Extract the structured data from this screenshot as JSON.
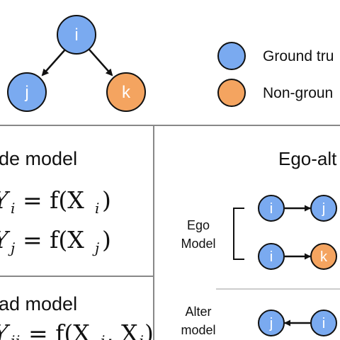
{
  "colors": {
    "ground_truth": "#7aaaf0",
    "non_ground_truth": "#f4a460",
    "stroke": "#111111",
    "divider": "#bbbbbb"
  },
  "top_graph": {
    "node_top": "i",
    "node_left": "j",
    "node_right": "k"
  },
  "legend": {
    "ground_truth_label": "Ground tru",
    "non_ground_truth_label": "Non-groun"
  },
  "left_panel": {
    "node_model_title": "de model",
    "eq1_lhs": "Y",
    "eq1_lhs_sub": "i",
    "eq1_rhs": "= f(X",
    "eq1_rhs_sub": "i",
    "eq1_close": ")",
    "eq2_lhs": "Y",
    "eq2_lhs_sub": "j",
    "eq2_rhs": "= f(X",
    "eq2_rhs_sub": "j",
    "eq2_close": ")",
    "pair_model_title": "ad model",
    "eq3_text": "Y",
    "eq3_sub": "ij",
    "eq3_rhs": "= f(X",
    "eq3_rhs_sub": "i",
    "eq3_mid": ", X",
    "eq3_mid_sub": "j",
    "eq3_close": ")"
  },
  "right_panel": {
    "title": "Ego-alt",
    "ego_label_line1": "Ego",
    "ego_label_line2": "Model",
    "ego_row1": {
      "from": "i",
      "to": "j"
    },
    "ego_row2": {
      "from": "i",
      "to": "k"
    },
    "alter_label_line1": "Alter",
    "alter_label_line2": "model",
    "alter_row": {
      "from": "i",
      "to": "j"
    }
  }
}
